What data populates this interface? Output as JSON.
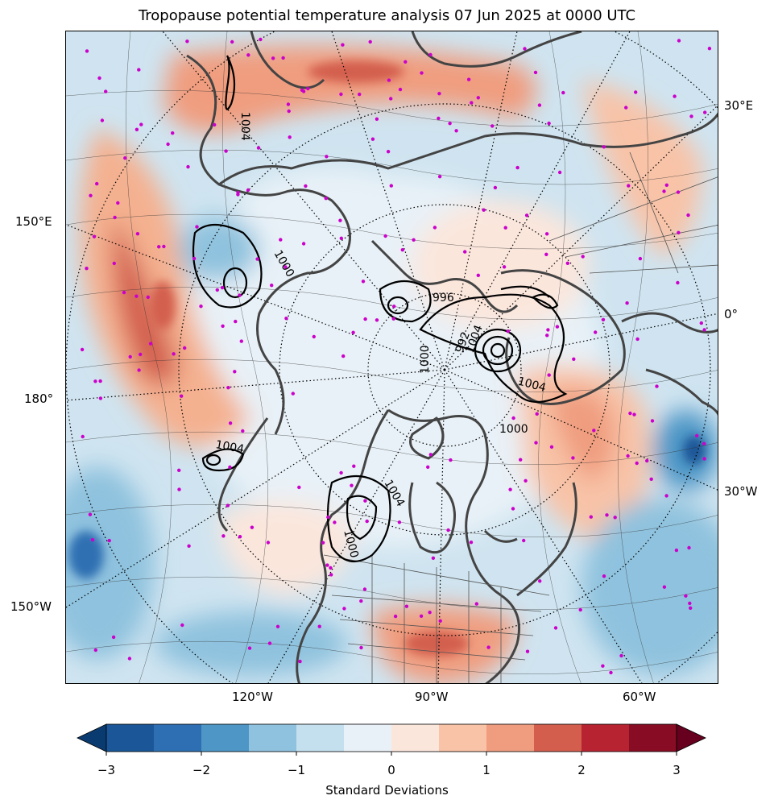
{
  "title": "Tropopause potential temperature analysis 07 Jun 2025 at 0000 UTC",
  "map": {
    "projection": "north-polar-stereographic",
    "longitude_labels": {
      "right_30E": "30°E",
      "right_0": "0°",
      "right_30W": "30°W",
      "left_150E": "150°E",
      "left_180": "180°",
      "left_150W": "150°W",
      "bottom_120W": "120°W",
      "bottom_90W": "90°W",
      "bottom_60W": "60°W"
    },
    "pressure_contour_labels": [
      "1004",
      "1000",
      "996",
      "992",
      "1004",
      "1000",
      "1004",
      "1000",
      "1004",
      "1000",
      "1004"
    ],
    "station_marker_color": "#cc00cc",
    "coastline_color": "#444444",
    "graticule_style": "dotted"
  },
  "colorbar": {
    "label": "Standard Deviations",
    "ticks": [
      "−3",
      "−2",
      "−1",
      "0",
      "1",
      "2",
      "3"
    ],
    "extend": "both",
    "colors": [
      "#0a3b70",
      "#1a5698",
      "#2d6fb2",
      "#4d96c6",
      "#8fc2de",
      "#c4dfee",
      "#e8f1f7",
      "#fbe6dc",
      "#f8c3a7",
      "#f09d7f",
      "#d35e4e",
      "#b72330",
      "#880d24",
      "#67001f"
    ]
  }
}
